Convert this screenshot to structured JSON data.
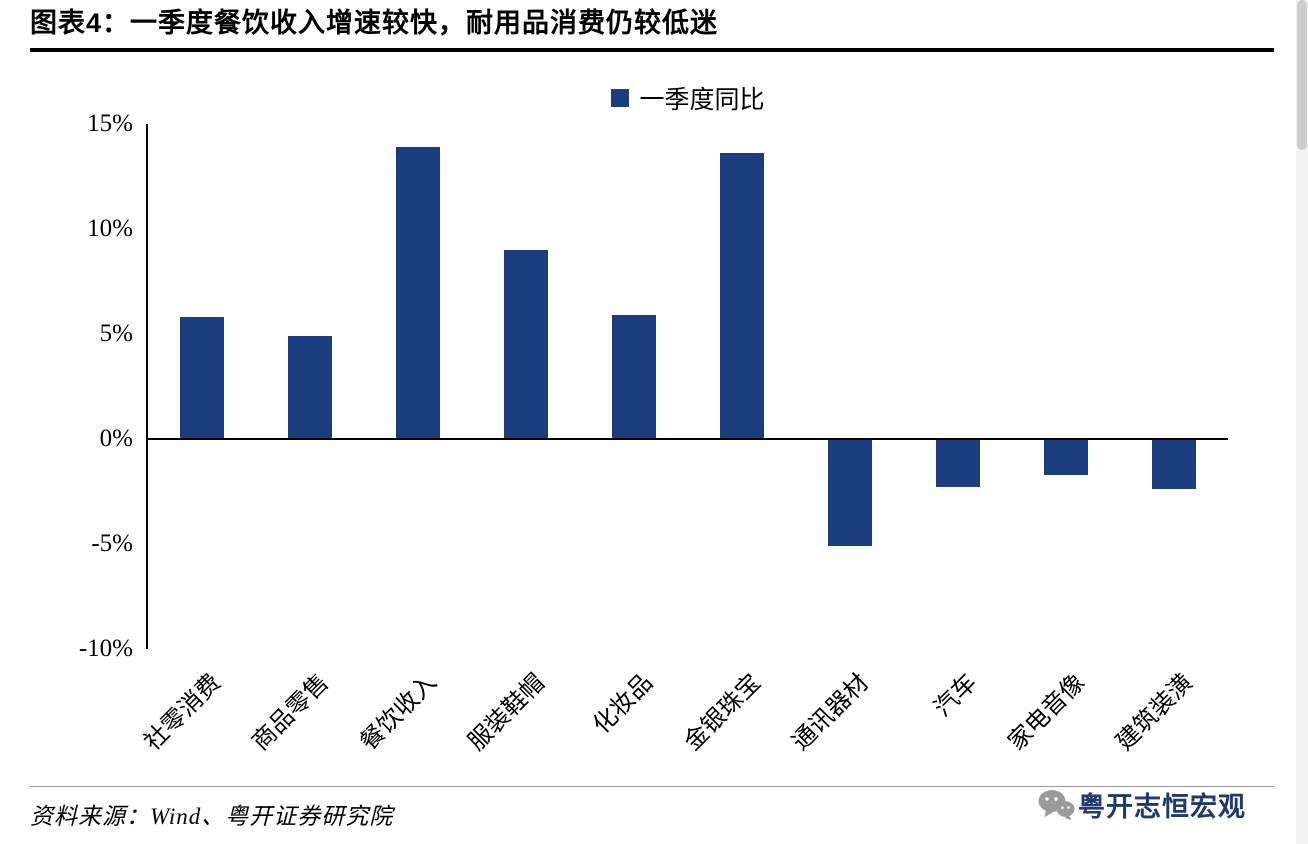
{
  "header": {
    "prefix": "图表4：",
    "title": "一季度餐饮收入增速较快，耐用品消费仍较低迷"
  },
  "chart_data": {
    "type": "bar",
    "title": "一季度餐饮收入增速较快，耐用品消费仍较低迷",
    "categories": [
      "社零消费",
      "商品零售",
      "餐饮收入",
      "服装鞋帽",
      "化妆品",
      "金银珠宝",
      "通讯器材",
      "汽车",
      "家电音像",
      "建筑装潢"
    ],
    "series": [
      {
        "name": "一季度同比",
        "values": [
          5.8,
          4.9,
          13.9,
          9.0,
          5.9,
          13.6,
          -5.1,
          -2.3,
          -1.7,
          -2.4
        ]
      }
    ],
    "unit": "%",
    "ylim": [
      -10,
      15
    ],
    "yticks": [
      15,
      10,
      5,
      0,
      -5,
      -10
    ],
    "ytick_labels": [
      "15%",
      "10%",
      "5%",
      "0%",
      "-5%",
      "-10%"
    ],
    "bar_color": "#1b3d7d",
    "grid": false,
    "legend_position": "top-center"
  },
  "footer": {
    "source": "资料来源：Wind、粤开证券研究院"
  },
  "watermark": {
    "icon": "wechat-logo-icon",
    "text": "粤开志恒宏观",
    "color": "#1e3a6e"
  }
}
